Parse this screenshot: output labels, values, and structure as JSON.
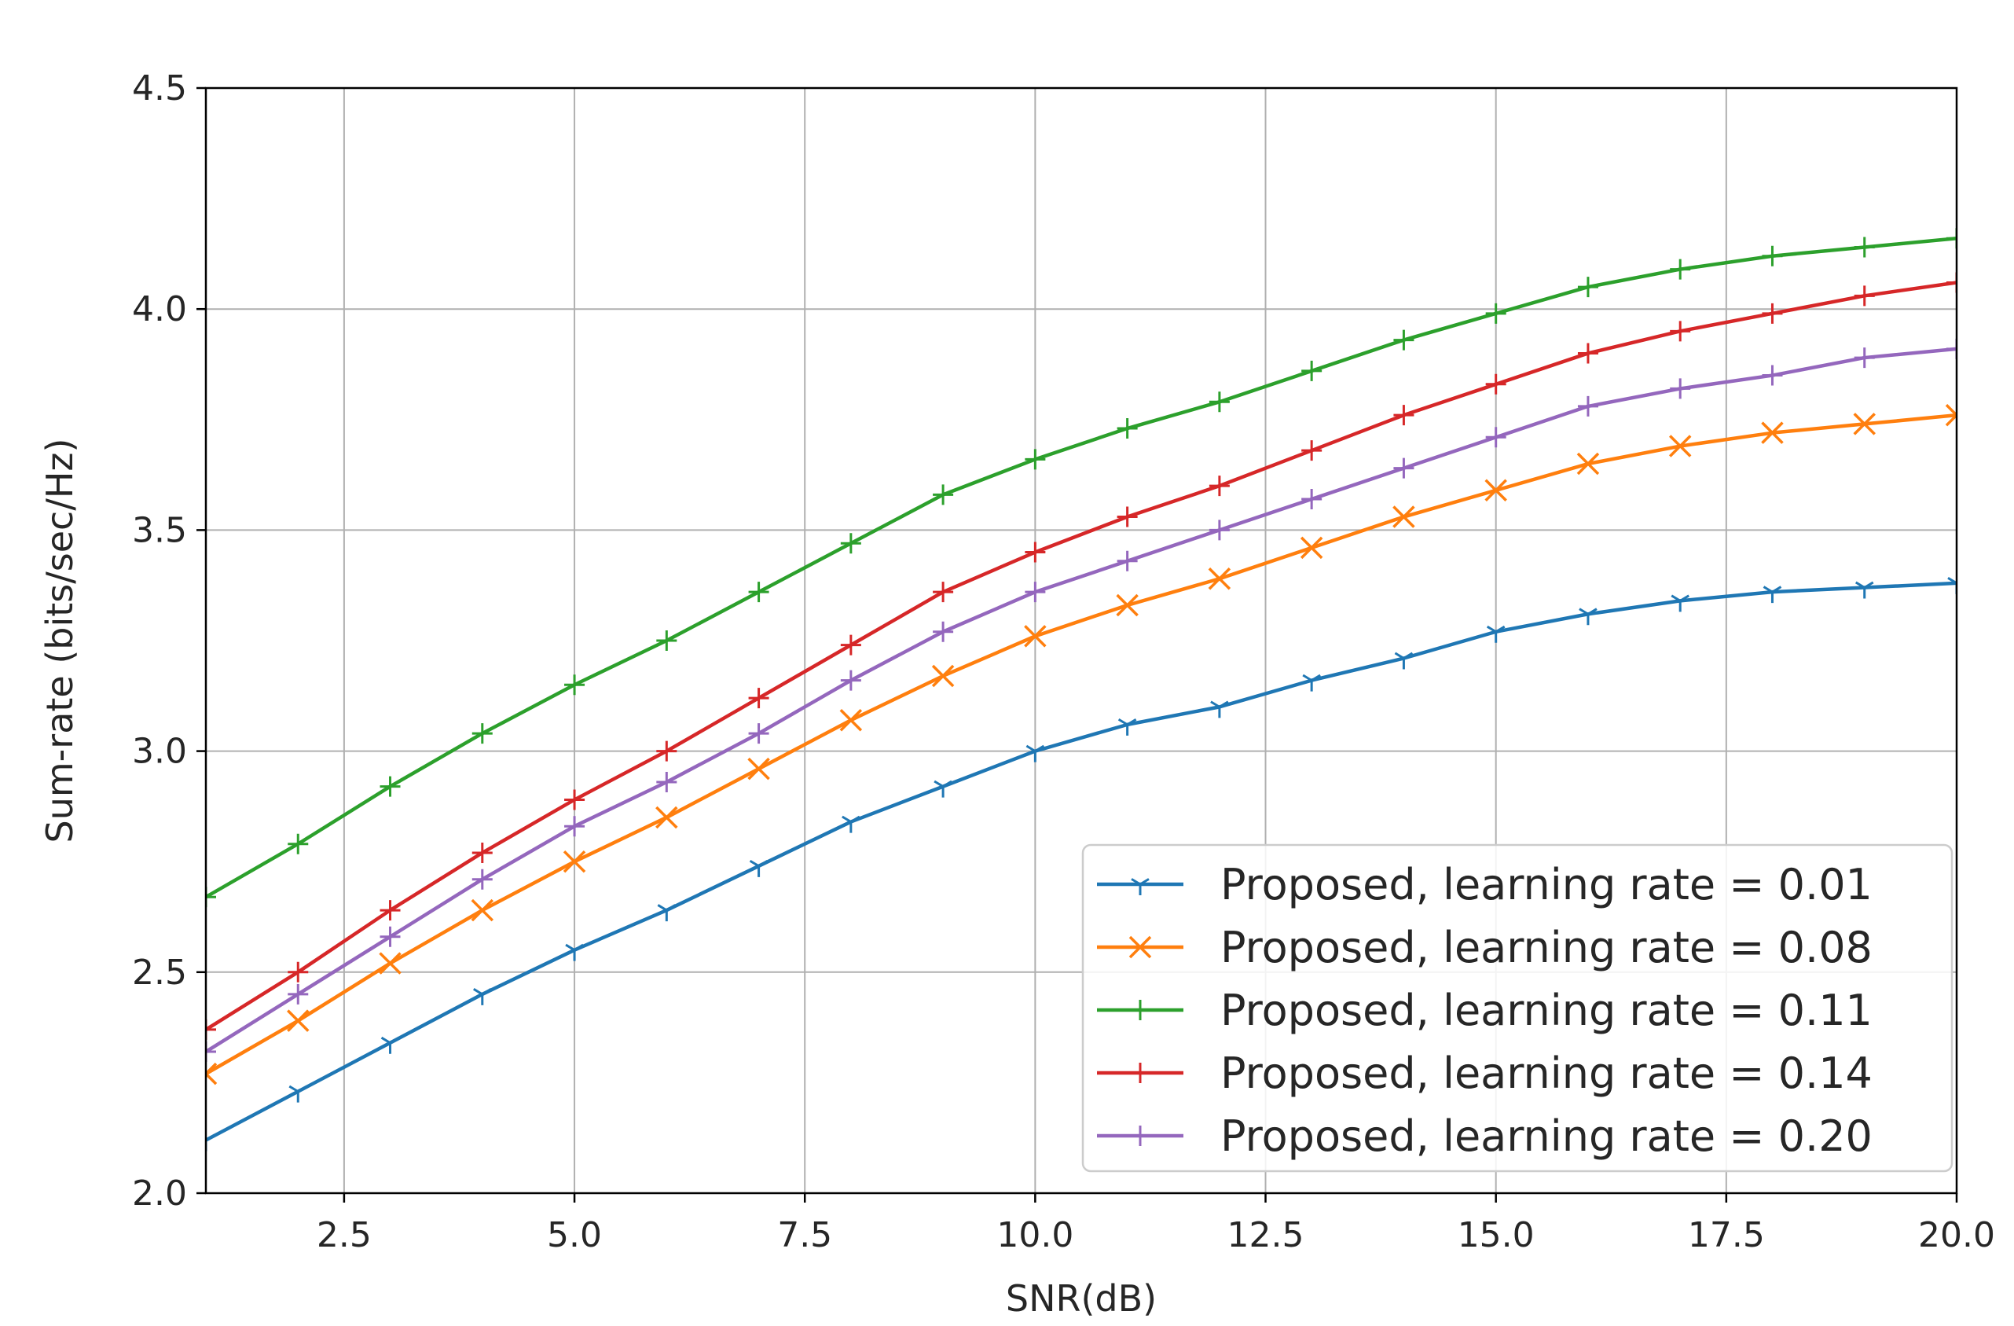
{
  "chart_data": {
    "type": "line",
    "title": "",
    "xlabel": "SNR(dB)",
    "ylabel": "Sum-rate (bits/sec/Hz)",
    "xlim": [
      1,
      20
    ],
    "ylim": [
      2.0,
      4.5
    ],
    "x_ticks": [
      "2.5",
      "5.0",
      "7.5",
      "10.0",
      "12.5",
      "15.0",
      "17.5",
      "20.0"
    ],
    "y_ticks": [
      "2.0",
      "2.5",
      "3.0",
      "3.5",
      "4.0",
      "4.5"
    ],
    "grid": true,
    "legend_position": "lower-right",
    "x": [
      1,
      2,
      3,
      4,
      5,
      6,
      7,
      8,
      9,
      10,
      11,
      12,
      13,
      14,
      15,
      16,
      17,
      18,
      19,
      20
    ],
    "series": [
      {
        "name": "Proposed, learning rate = 0.01",
        "color": "#1f77b4",
        "marker": "tri",
        "values": [
          2.12,
          2.23,
          2.34,
          2.45,
          2.55,
          2.64,
          2.74,
          2.84,
          2.92,
          3.0,
          3.06,
          3.1,
          3.16,
          3.21,
          3.27,
          3.31,
          3.34,
          3.36,
          3.37,
          3.38
        ]
      },
      {
        "name": "Proposed, learning rate = 0.08",
        "color": "#ff7f0e",
        "marker": "x",
        "values": [
          2.27,
          2.39,
          2.52,
          2.64,
          2.75,
          2.85,
          2.96,
          3.07,
          3.17,
          3.26,
          3.33,
          3.39,
          3.46,
          3.53,
          3.59,
          3.65,
          3.69,
          3.72,
          3.74,
          3.76
        ]
      },
      {
        "name": "Proposed, learning rate = 0.11",
        "color": "#2ca02c",
        "marker": "plus",
        "values": [
          2.67,
          2.79,
          2.92,
          3.04,
          3.15,
          3.25,
          3.36,
          3.47,
          3.58,
          3.66,
          3.73,
          3.79,
          3.86,
          3.93,
          3.99,
          4.05,
          4.09,
          4.12,
          4.14,
          4.16
        ]
      },
      {
        "name": "Proposed, learning rate = 0.14",
        "color": "#d62728",
        "marker": "plus",
        "values": [
          2.37,
          2.5,
          2.64,
          2.77,
          2.89,
          3.0,
          3.12,
          3.24,
          3.36,
          3.45,
          3.53,
          3.6,
          3.68,
          3.76,
          3.83,
          3.9,
          3.95,
          3.99,
          4.03,
          4.06
        ]
      },
      {
        "name": "Proposed, learning rate = 0.20",
        "color": "#9467bd",
        "marker": "plus",
        "values": [
          2.32,
          2.45,
          2.58,
          2.71,
          2.83,
          2.93,
          3.04,
          3.16,
          3.27,
          3.36,
          3.43,
          3.5,
          3.57,
          3.64,
          3.71,
          3.78,
          3.82,
          3.85,
          3.89,
          3.91
        ]
      }
    ]
  }
}
